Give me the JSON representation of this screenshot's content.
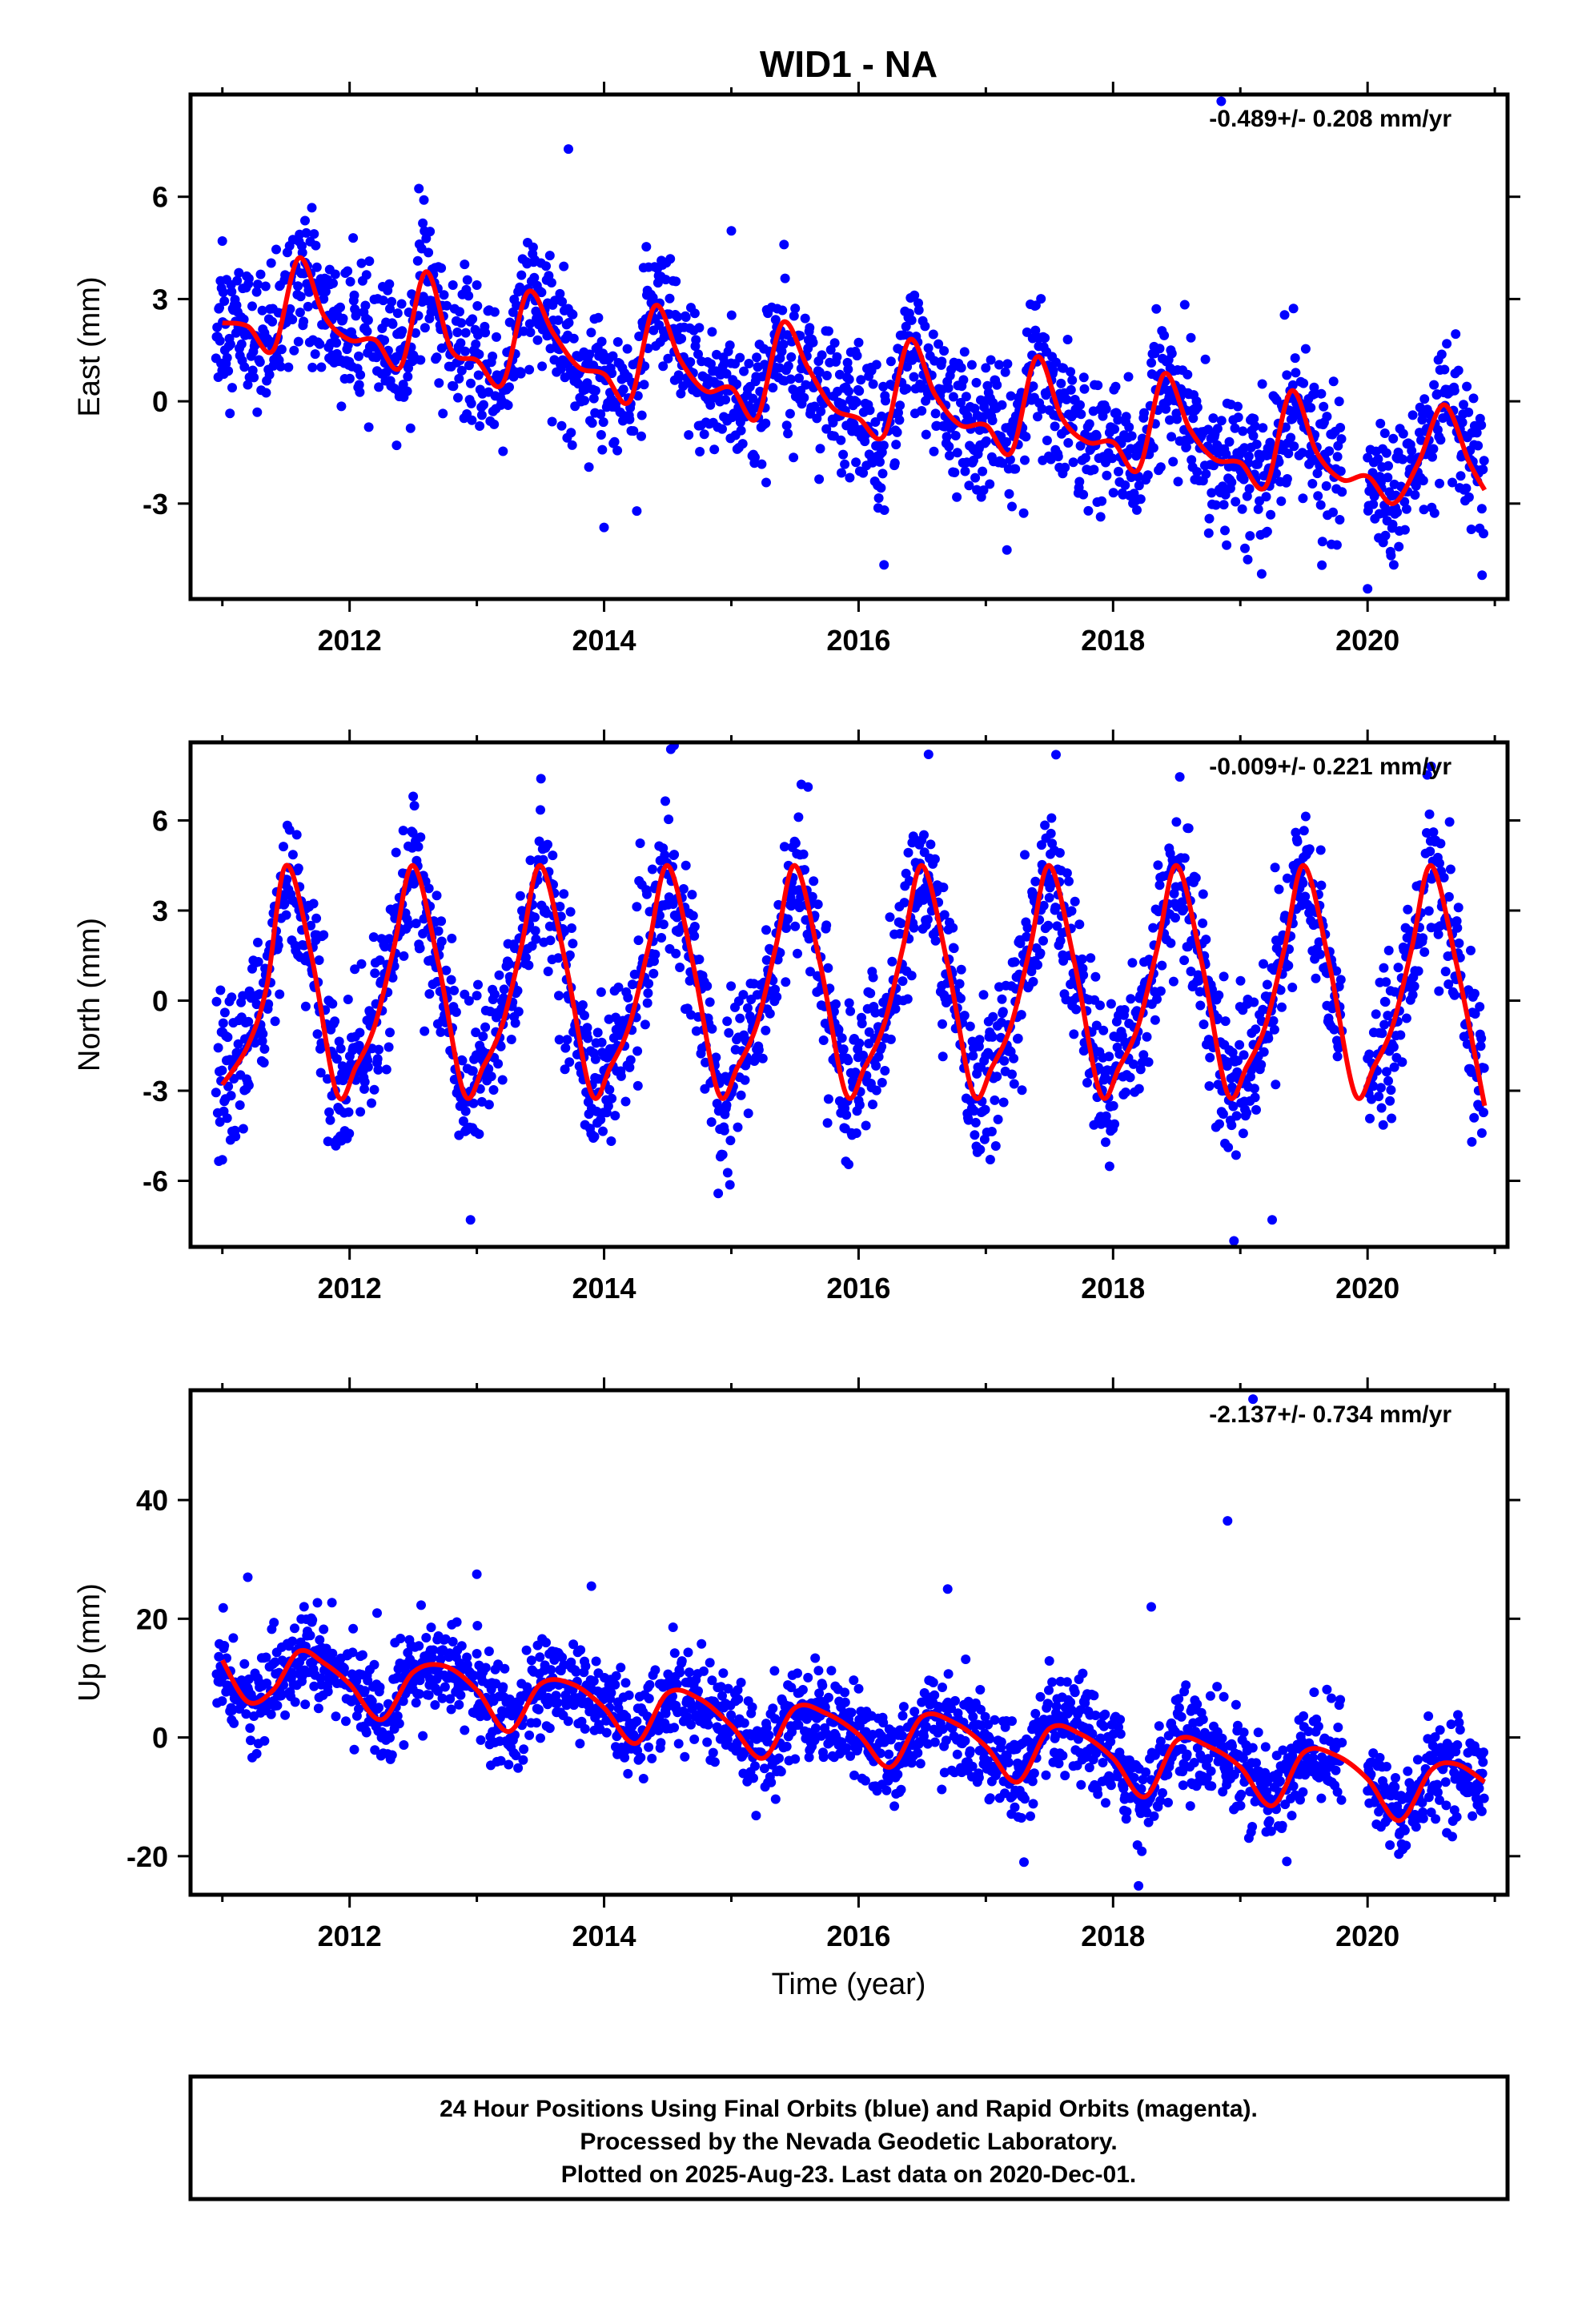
{
  "figure": {
    "title": "WID1 - NA",
    "xlabel": "Time (year)",
    "footer": [
      "24 Hour Positions Using Final Orbits (blue) and Rapid Orbits (magenta).",
      "Processed by the Nevada Geodetic Laboratory.",
      "Plotted on 2025-Aug-23. Last data on 2020-Dec-01."
    ],
    "colors": {
      "final_orbits": "#0000ff",
      "model": "#ff0000",
      "frame": "#000000"
    }
  },
  "chart_data": [
    {
      "type": "scatter",
      "component": "east",
      "ylabel": "East (mm)",
      "rate_text": "-0.489+/- 0.208 mm/yr",
      "xlim": [
        2010.75,
        2021.1
      ],
      "ylim": [
        -5.8,
        9.0
      ],
      "xticks": [
        2012,
        2014,
        2016,
        2018,
        2020
      ],
      "xticklabels": [
        "2012",
        "2014",
        "2016",
        "2018",
        "2020"
      ],
      "yticks": [
        -3,
        0,
        3,
        6
      ],
      "yticklabels": [
        "-3",
        "0",
        "3",
        "6"
      ],
      "grid": false,
      "model": {
        "name": "fit",
        "color": "#ff0000",
        "x": [
          2011.0,
          2011.2,
          2011.4,
          2011.6,
          2011.8,
          2012.0,
          2012.2,
          2012.4,
          2012.6,
          2012.8,
          2013.0,
          2013.2,
          2013.4,
          2013.6,
          2013.8,
          2014.0,
          2014.2,
          2014.4,
          2014.6,
          2014.8,
          2015.0,
          2015.2,
          2015.4,
          2015.6,
          2015.8,
          2016.0,
          2016.2,
          2016.4,
          2016.6,
          2016.8,
          2017.0,
          2017.2,
          2017.4,
          2017.6,
          2017.8,
          2018.0,
          2018.2,
          2018.4,
          2018.6,
          2018.8,
          2019.0,
          2019.2,
          2019.4,
          2019.6,
          2019.8,
          2020.0,
          2020.2,
          2020.4,
          2020.6,
          2020.8,
          2020.92
        ],
        "y": [
          2.3,
          2.2,
          1.5,
          4.2,
          2.5,
          1.8,
          1.8,
          1.0,
          3.8,
          1.5,
          1.2,
          0.5,
          3.2,
          2.0,
          1.0,
          0.8,
          0.0,
          2.8,
          1.2,
          0.3,
          0.4,
          -0.5,
          2.3,
          1.0,
          -0.2,
          -0.5,
          -1.0,
          1.8,
          0.2,
          -0.7,
          -0.7,
          -1.5,
          1.3,
          -0.5,
          -1.2,
          -1.2,
          -2.0,
          0.8,
          -0.8,
          -1.7,
          -1.8,
          -2.5,
          0.3,
          -1.5,
          -2.3,
          -2.2,
          -3.0,
          -1.8,
          -0.1,
          -1.8,
          -2.6
        ]
      },
      "observations": {
        "series": "Final Orbits (blue)",
        "color": "#0000ff",
        "x_start": 2010.95,
        "x_end": 2020.92,
        "gaps": [
          [
            2019.8,
            2020.0
          ]
        ],
        "scatter_mm": 1.0,
        "outliers": [
          {
            "x": 2013.72,
            "y": 7.4
          },
          {
            "x": 2018.85,
            "y": 8.8
          },
          {
            "x": 2014.0,
            "y": -3.7
          },
          {
            "x": 2020.0,
            "y": -5.5
          },
          {
            "x": 2020.9,
            "y": -5.1
          },
          {
            "x": 2016.2,
            "y": -4.8
          },
          {
            "x": 2011.0,
            "y": 4.7
          },
          {
            "x": 2011.65,
            "y": 5.3
          },
          {
            "x": 2015.0,
            "y": 5.0
          }
        ]
      }
    },
    {
      "type": "scatter",
      "component": "north",
      "ylabel": "North (mm)",
      "rate_text": "-0.009+/- 0.221 mm/yr",
      "xlim": [
        2010.75,
        2021.1
      ],
      "ylim": [
        -8.2,
        8.6
      ],
      "xticks": [
        2012,
        2014,
        2016,
        2018,
        2020
      ],
      "xticklabels": [
        "2012",
        "2014",
        "2016",
        "2018",
        "2020"
      ],
      "yticks": [
        -6,
        -3,
        0,
        3,
        6
      ],
      "yticklabels": [
        "-6",
        "-3",
        "0",
        "3",
        "6"
      ],
      "grid": false,
      "model": {
        "name": "fit",
        "color": "#ff0000",
        "x": [
          2011.0,
          2011.2,
          2011.35,
          2011.5,
          2011.7,
          2011.9,
          2012.05,
          2012.2,
          2012.35,
          2012.5,
          2012.7,
          2012.9,
          2013.05,
          2013.2,
          2013.35,
          2013.5,
          2013.7,
          2013.9,
          2014.05,
          2014.2,
          2014.35,
          2014.5,
          2014.7,
          2014.9,
          2015.05,
          2015.2,
          2015.35,
          2015.5,
          2015.7,
          2015.9,
          2016.05,
          2016.2,
          2016.35,
          2016.5,
          2016.7,
          2016.9,
          2017.05,
          2017.2,
          2017.35,
          2017.5,
          2017.7,
          2017.9,
          2018.05,
          2018.2,
          2018.35,
          2018.5,
          2018.7,
          2018.9,
          2019.05,
          2019.2,
          2019.35,
          2019.5,
          2019.7,
          2019.9,
          2020.05,
          2020.2,
          2020.35,
          2020.5,
          2020.7,
          2020.92
        ],
        "y": [
          -2.8,
          -1.5,
          0.5,
          4.5,
          1.5,
          -3.1,
          -2.2,
          -0.8,
          1.8,
          4.5,
          1.2,
          -3.1,
          -2.2,
          -0.8,
          1.8,
          4.5,
          1.2,
          -3.1,
          -2.2,
          -0.8,
          1.8,
          4.5,
          1.2,
          -3.1,
          -2.2,
          -0.8,
          1.8,
          4.5,
          1.2,
          -3.1,
          -2.2,
          -0.8,
          1.8,
          4.5,
          1.2,
          -3.1,
          -2.2,
          -0.8,
          1.8,
          4.5,
          1.2,
          -3.1,
          -2.2,
          -0.8,
          1.8,
          4.5,
          1.2,
          -3.1,
          -2.2,
          -0.8,
          1.8,
          4.5,
          1.2,
          -3.1,
          -2.2,
          -0.8,
          1.8,
          4.5,
          1.2,
          -3.5
        ]
      },
      "observations": {
        "series": "Final Orbits (blue)",
        "color": "#0000ff",
        "x_start": 2010.95,
        "x_end": 2020.92,
        "gaps": [
          [
            2019.8,
            2020.0
          ]
        ],
        "scatter_mm": 1.2,
        "outliers": [
          {
            "x": 2012.95,
            "y": -7.3
          },
          {
            "x": 2018.95,
            "y": -8.0
          },
          {
            "x": 2019.25,
            "y": -7.3
          },
          {
            "x": 2014.55,
            "y": 8.5
          },
          {
            "x": 2016.55,
            "y": 8.2
          },
          {
            "x": 2020.5,
            "y": 7.8
          },
          {
            "x": 2012.5,
            "y": 6.8
          },
          {
            "x": 2015.55,
            "y": 7.2
          },
          {
            "x": 2011.0,
            "y": -5.3
          }
        ]
      }
    },
    {
      "type": "scatter",
      "component": "up",
      "ylabel": "Up (mm)",
      "rate_text": "-2.137+/- 0.734 mm/yr",
      "xlim": [
        2010.75,
        2021.1
      ],
      "ylim": [
        -26.5,
        58.5
      ],
      "xticks": [
        2012,
        2014,
        2016,
        2018,
        2020
      ],
      "xticklabels": [
        "2012",
        "2014",
        "2016",
        "2018",
        "2020"
      ],
      "yticks": [
        -20,
        0,
        20,
        40
      ],
      "yticklabels": [
        "-20",
        "0",
        "20",
        "40"
      ],
      "grid": false,
      "model": {
        "name": "fit",
        "color": "#ff0000",
        "x": [
          2011.0,
          2011.2,
          2011.4,
          2011.6,
          2011.8,
          2012.0,
          2012.25,
          2012.5,
          2012.75,
          2013.0,
          2013.25,
          2013.5,
          2013.75,
          2014.0,
          2014.25,
          2014.5,
          2014.75,
          2015.0,
          2015.25,
          2015.5,
          2015.75,
          2016.0,
          2016.25,
          2016.5,
          2016.75,
          2017.0,
          2017.25,
          2017.5,
          2017.75,
          2018.0,
          2018.25,
          2018.5,
          2018.75,
          2019.0,
          2019.25,
          2019.5,
          2019.75,
          2020.0,
          2020.25,
          2020.5,
          2020.7,
          2020.92
        ],
        "y": [
          13.0,
          6.0,
          8.0,
          14.5,
          12.5,
          9.0,
          3.0,
          11.0,
          12.0,
          8.0,
          1.0,
          9.0,
          9.0,
          5.0,
          -1.0,
          7.5,
          6.5,
          2.0,
          -3.5,
          5.0,
          4.0,
          0.5,
          -5.0,
          3.5,
          2.5,
          -1.5,
          -7.5,
          1.5,
          0.5,
          -3.5,
          -10.0,
          -0.5,
          -1.5,
          -5.0,
          -11.5,
          -2.5,
          -3.0,
          -7.0,
          -14.0,
          -5.5,
          -4.5,
          -7.5
        ]
      },
      "observations": {
        "series": "Final Orbits (blue)",
        "color": "#0000ff",
        "x_start": 2010.95,
        "x_end": 2020.92,
        "gaps": [
          [
            2019.8,
            2020.0
          ]
        ],
        "scatter_mm": 4.0,
        "outliers": [
          {
            "x": 2019.1,
            "y": 57.0
          },
          {
            "x": 2018.9,
            "y": 36.5
          },
          {
            "x": 2013.0,
            "y": 27.5
          },
          {
            "x": 2011.2,
            "y": 27.0
          },
          {
            "x": 2016.7,
            "y": 25.0
          },
          {
            "x": 2018.2,
            "y": -25.0
          },
          {
            "x": 2017.3,
            "y": -21.0
          },
          {
            "x": 2018.3,
            "y": 22.0
          },
          {
            "x": 2013.9,
            "y": 25.5
          }
        ]
      }
    }
  ]
}
